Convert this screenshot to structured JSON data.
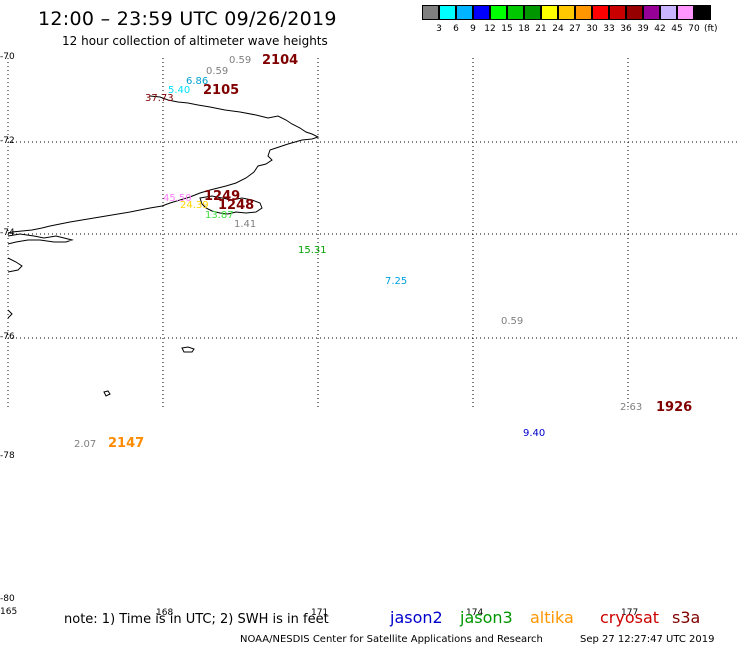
{
  "title": "12:00 – 23:59 UTC 09/26/2019",
  "subtitle": "12 hour collection of altimeter wave heights",
  "colorbar": {
    "colors": [
      "#808080",
      "#00ffff",
      "#00b4ff",
      "#0000ff",
      "#00ff00",
      "#00c800",
      "#009600",
      "#ffff00",
      "#ffc800",
      "#ff9600",
      "#ff0000",
      "#c80000",
      "#960000",
      "#960096",
      "#c8b4ff",
      "#ff96ff",
      "#000000"
    ],
    "ticks": [
      "3",
      "6",
      "9",
      "12",
      "15",
      "18",
      "21",
      "24",
      "27",
      "30",
      "33",
      "36",
      "39",
      "42",
      "45",
      "70"
    ],
    "unit": "(ft)"
  },
  "axes": {
    "lat_labels": [
      "-70",
      "-72",
      "-74",
      "-76",
      "-78",
      "-80"
    ],
    "lon_labels": [
      "165",
      "168",
      "171",
      "174",
      "177"
    ]
  },
  "observations": [
    {
      "value": "0.59",
      "color": "#808080",
      "time": "2104",
      "time_color": "#800000"
    },
    {
      "value": "0.59",
      "color": "#808080"
    },
    {
      "value": "6.86",
      "color": "#00a0d0"
    },
    {
      "value": "5.40",
      "color": "#00e0ff",
      "time": "2105",
      "time_color": "#800000"
    },
    {
      "value": "37.73",
      "color": "#800000"
    },
    {
      "value": "45.50",
      "color": "#ff80ff",
      "time": "1249",
      "time_color": "#800000"
    },
    {
      "value": "24.39",
      "color": "#ffd700",
      "time": "1248",
      "time_color": "#800000"
    },
    {
      "value": "13.87",
      "color": "#40e040"
    },
    {
      "value": "1.41",
      "color": "#808080"
    },
    {
      "value": "15.31",
      "color": "#00a000"
    },
    {
      "value": "7.25",
      "color": "#00a0e0"
    },
    {
      "value": "0.59",
      "color": "#808080"
    },
    {
      "value": "2.63",
      "color": "#808080",
      "time": "1926",
      "time_color": "#800000"
    },
    {
      "value": "9.40",
      "color": "#0000cc"
    },
    {
      "value": "2.07",
      "color": "#808080",
      "time": "2147",
      "time_color": "#ff8c00"
    }
  ],
  "note": "note: 1) Time is in UTC; 2) SWH is in feet",
  "legend": [
    {
      "name": "jason2",
      "color": "#0000cc"
    },
    {
      "name": "jason3",
      "color": "#009600"
    },
    {
      "name": "altika",
      "color": "#ff9600"
    },
    {
      "name": "cryosat",
      "color": "#cc0000"
    },
    {
      "name": "s3a",
      "color": "#800000"
    }
  ],
  "credit": "NOAA/NESDIS Center for Satellite Applications and Research",
  "timestamp": "Sep 27 12:27:47 UTC 2019"
}
